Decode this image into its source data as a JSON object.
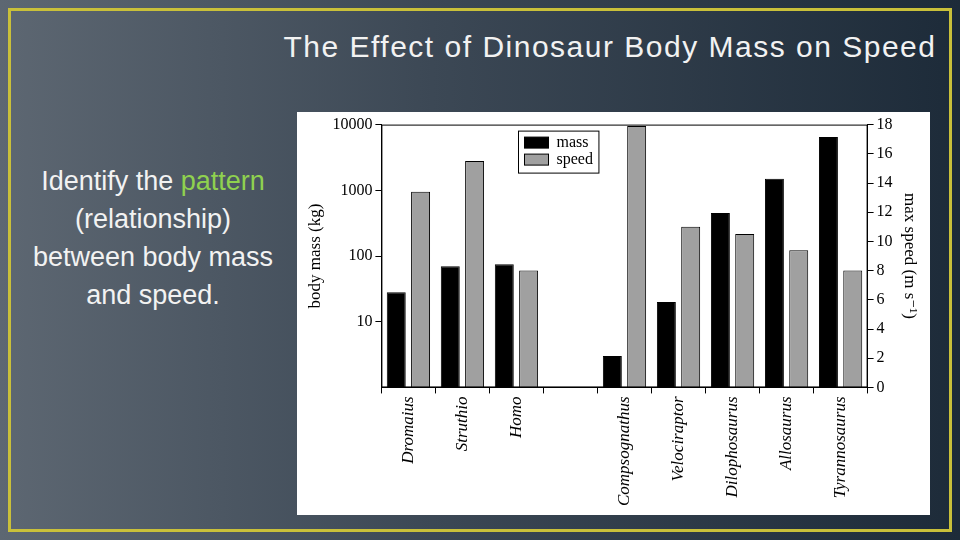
{
  "slide": {
    "prompt": {
      "before": "Identify the",
      "highlight": "pattern",
      "after": "(relationship) between body mass and speed."
    }
  },
  "chart_data": {
    "type": "bar",
    "title": "The Effect of Dinosaur Body Mass on Speed",
    "categories": [
      "Dromaius",
      "Struthio",
      "Homo",
      null,
      "Compsognathus",
      "Velociraptor",
      "Dilophosaurus",
      "Allosaurus",
      "Tyrannosaurus"
    ],
    "series": [
      {
        "name": "mass",
        "color": "#000000",
        "values": [
          28,
          70,
          75,
          null,
          3,
          20,
          450,
          1500,
          6500
        ]
      },
      {
        "name": "speed",
        "color": "#a0a0a0",
        "axis": "y2",
        "values": [
          13.4,
          15.5,
          8,
          null,
          17.9,
          11,
          10.5,
          9.4,
          8
        ]
      }
    ],
    "ylabel": "body mass (kg)",
    "y2label": "max speed (m s⁻¹)",
    "log": "y",
    "ylim": [
      1,
      10000
    ],
    "yticks": [
      10,
      100,
      1000,
      10000
    ],
    "y2lim": [
      0,
      18
    ],
    "y2ticks": [
      0,
      2,
      4,
      6,
      8,
      10,
      12,
      14,
      16,
      18
    ],
    "legend": "upper center",
    "grid": false
  }
}
